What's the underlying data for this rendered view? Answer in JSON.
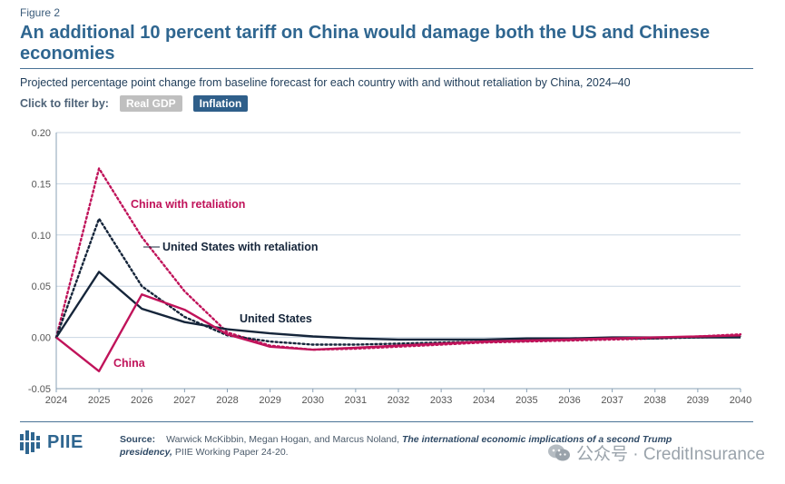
{
  "figure_label": "Figure 2",
  "title": "An additional 10 percent tariff on China would damage both the US and Chinese economies",
  "subtitle": "Projected percentage point change from baseline forecast for each country with and without retaliation by China, 2024–40",
  "filter": {
    "label": "Click to filter by:",
    "options": [
      "Real GDP",
      "Inflation"
    ],
    "selected": "Inflation"
  },
  "chart_data": {
    "type": "line",
    "x": [
      2024,
      2025,
      2026,
      2027,
      2028,
      2029,
      2030,
      2031,
      2032,
      2033,
      2034,
      2035,
      2036,
      2037,
      2038,
      2039,
      2040
    ],
    "xlim": [
      2024,
      2040
    ],
    "ylim": [
      -0.05,
      0.2
    ],
    "yticks": [
      "0.20",
      "0.15",
      "0.10",
      "0.05",
      "0.00",
      "-0.05"
    ],
    "ytick_values": [
      0.2,
      0.15,
      0.1,
      0.05,
      0.0,
      -0.05
    ],
    "grid": true,
    "series": [
      {
        "name": "China with retaliation",
        "color": "#c0135a",
        "style": "dotted",
        "values": [
          0.0,
          0.165,
          0.098,
          0.045,
          0.005,
          -0.008,
          -0.012,
          -0.011,
          -0.009,
          -0.007,
          -0.005,
          -0.004,
          -0.003,
          -0.002,
          -0.001,
          0.001,
          0.003
        ]
      },
      {
        "name": "United States with retaliation",
        "color": "#15253a",
        "style": "dotted",
        "values": [
          0.0,
          0.116,
          0.05,
          0.02,
          0.002,
          -0.004,
          -0.007,
          -0.007,
          -0.006,
          -0.005,
          -0.004,
          -0.003,
          -0.002,
          -0.001,
          -0.001,
          0.0,
          0.001
        ]
      },
      {
        "name": "United States",
        "color": "#15253a",
        "style": "solid",
        "values": [
          0.0,
          0.064,
          0.028,
          0.015,
          0.008,
          0.004,
          0.001,
          -0.001,
          -0.002,
          -0.002,
          -0.002,
          -0.001,
          -0.001,
          0.0,
          0.0,
          0.0,
          0.0
        ]
      },
      {
        "name": "China",
        "color": "#c0135a",
        "style": "solid",
        "values": [
          0.0,
          -0.033,
          0.042,
          0.027,
          0.003,
          -0.009,
          -0.012,
          -0.01,
          -0.008,
          -0.006,
          -0.004,
          -0.003,
          -0.002,
          -0.001,
          0.0,
          0.001,
          0.002
        ]
      }
    ],
    "annotations": [
      {
        "text": "China with retaliation",
        "series": 0
      },
      {
        "text": "United States with retaliation",
        "series": 1
      },
      {
        "text": "United States",
        "series": 2
      },
      {
        "text": "China",
        "series": 3
      }
    ]
  },
  "source": {
    "label": "Source:",
    "text_plain": "Warwick McKibbin, Megan Hogan, and Marcus Noland, ",
    "text_italic": "The international economic implications of a second Trump presidency,",
    "text_end": " PIIE Working Paper 24-20."
  },
  "logo_text": "PIIE",
  "watermark": "公众号 · CreditInsurance",
  "colors": {
    "accent": "#2f6690",
    "china": "#c0135a",
    "us": "#15253a",
    "button_on": "#2f5f8a",
    "button_off": "#bfbfbf"
  }
}
